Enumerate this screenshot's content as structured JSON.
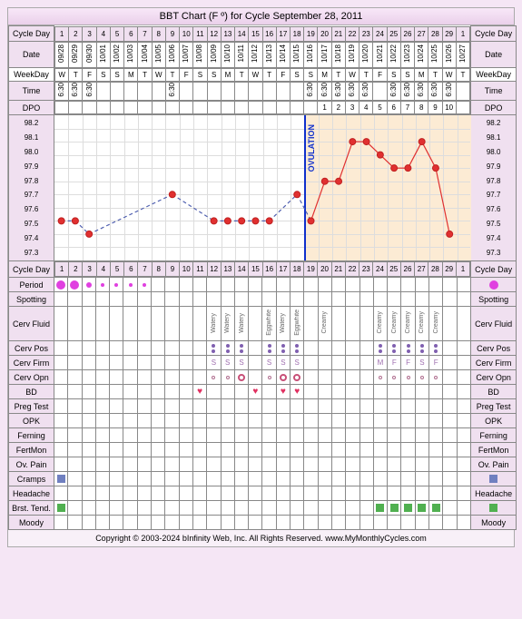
{
  "title": "BBT Chart (F º) for Cycle September 28, 2011",
  "footer": "Copyright © 2003-2024 bInfinity Web, Inc. All Rights Reserved.    www.MyMonthlyCycles.com",
  "labels": {
    "cycleDay": "Cycle Day",
    "date": "Date",
    "weekday": "WeekDay",
    "time": "Time",
    "dpo": "DPO",
    "period": "Period",
    "spotting": "Spotting",
    "cervFluid": "Cerv Fluid",
    "cervPos": "Cerv Pos",
    "cervFirm": "Cerv Firm",
    "cervOpn": "Cerv Opn",
    "bd": "BD",
    "pregTest": "Preg Test",
    "opk": "OPK",
    "ferning": "Ferning",
    "fertMon": "FertMon",
    "ovPain": "Ov. Pain",
    "cramps": "Cramps",
    "headache": "Headache",
    "brstTend": "Brst. Tend.",
    "moody": "Moody",
    "ovulation": "OVULATION"
  },
  "days": [
    1,
    2,
    3,
    4,
    5,
    6,
    7,
    8,
    9,
    10,
    11,
    12,
    13,
    14,
    15,
    16,
    17,
    18,
    19,
    20,
    21,
    22,
    23,
    24,
    25,
    26,
    27,
    28,
    29,
    1
  ],
  "dates": [
    "09/28",
    "09/29",
    "09/30",
    "10/01",
    "10/02",
    "10/03",
    "10/04",
    "10/05",
    "10/06",
    "10/07",
    "10/08",
    "10/09",
    "10/10",
    "10/11",
    "10/12",
    "10/13",
    "10/14",
    "10/15",
    "10/16",
    "10/17",
    "10/18",
    "10/19",
    "10/20",
    "10/21",
    "10/22",
    "10/23",
    "10/24",
    "10/25",
    "10/26",
    "10/27"
  ],
  "weekdays": [
    "W",
    "T",
    "F",
    "S",
    "S",
    "M",
    "T",
    "W",
    "T",
    "F",
    "S",
    "S",
    "M",
    "T",
    "W",
    "T",
    "F",
    "S",
    "S",
    "M",
    "T",
    "W",
    "T",
    "F",
    "S",
    "S",
    "M",
    "T",
    "W",
    "T"
  ],
  "times": [
    "6:30",
    "6:30",
    "6:30",
    "",
    "",
    "",
    "",
    "",
    "6:30",
    "",
    "",
    "",
    "",
    "",
    "",
    "",
    "",
    "",
    "6:30",
    "6:30",
    "6:30",
    "6:30",
    "6:30",
    "",
    "6:30",
    "6:30",
    "6:30",
    "6:30",
    "6:30",
    ""
  ],
  "dpo": [
    "",
    "",
    "",
    "",
    "",
    "",
    "",
    "",
    "",
    "",
    "",
    "",
    "",
    "",
    "",
    "",
    "",
    "",
    "",
    "1",
    "2",
    "3",
    "4",
    "5",
    "6",
    "7",
    "8",
    "9",
    "10",
    ""
  ],
  "yTicks": [
    "98.2",
    "98.1",
    "98.0",
    "97.9",
    "97.8",
    "97.7",
    "97.6",
    "97.5",
    "97.4",
    "97.3"
  ],
  "chart": {
    "ymin": 97.2,
    "ymax": 98.3,
    "ovulationDay": 19,
    "lutealStart": 19,
    "points": [
      {
        "d": 1,
        "t": 97.5
      },
      {
        "d": 2,
        "t": 97.5
      },
      {
        "d": 3,
        "t": 97.4
      },
      {
        "d": 9,
        "t": 97.7
      },
      {
        "d": 12,
        "t": 97.5
      },
      {
        "d": 13,
        "t": 97.5
      },
      {
        "d": 14,
        "t": 97.5
      },
      {
        "d": 15,
        "t": 97.5
      },
      {
        "d": 16,
        "t": 97.5
      },
      {
        "d": 18,
        "t": 97.7
      },
      {
        "d": 19,
        "t": 97.5
      },
      {
        "d": 20,
        "t": 97.8
      },
      {
        "d": 21,
        "t": 97.8
      },
      {
        "d": 22,
        "t": 98.1
      },
      {
        "d": 23,
        "t": 98.1
      },
      {
        "d": 24,
        "t": 98.0
      },
      {
        "d": 25,
        "t": 97.9
      },
      {
        "d": 26,
        "t": 97.9
      },
      {
        "d": 27,
        "t": 98.1
      },
      {
        "d": 28,
        "t": 97.9
      },
      {
        "d": 29,
        "t": 97.4
      }
    ],
    "dashedSegments": [
      [
        1,
        2
      ],
      [
        2,
        3
      ],
      [
        3,
        9
      ],
      [
        9,
        12
      ],
      [
        12,
        13
      ],
      [
        13,
        14
      ],
      [
        14,
        15
      ],
      [
        15,
        16
      ],
      [
        16,
        18
      ],
      [
        18,
        19
      ]
    ],
    "solidSegments": [
      [
        19,
        20
      ],
      [
        20,
        21
      ],
      [
        21,
        22
      ],
      [
        22,
        23
      ],
      [
        23,
        24
      ],
      [
        24,
        25
      ],
      [
        25,
        26
      ],
      [
        26,
        27
      ],
      [
        27,
        28
      ],
      [
        28,
        29
      ]
    ],
    "bg_color": "#ffffff",
    "luteal_bg": "#fcebd4",
    "point_color": "#e03030",
    "dash_color": "#5060b0",
    "solid_color": "#e03030",
    "ov_line_color": "#1030cc"
  },
  "period": {
    "heavy": [
      1,
      2
    ],
    "medium": [
      3
    ],
    "light": [
      4,
      5,
      6,
      7
    ],
    "cycleEnd": true
  },
  "cervFluid": {
    "12": "Watery",
    "13": "Watery",
    "14": "Watery",
    "16": "Eggwhite",
    "17": "Watery",
    "18": "Eggwhite",
    "20": "Creamy",
    "24": "Creamy",
    "25": "Creamy",
    "26": "Creamy",
    "27": "Creamy",
    "28": "Creamy"
  },
  "cervPos": {
    "12": 2,
    "13": 2,
    "14": 2,
    "16": 2,
    "17": 2,
    "18": 2,
    "24": 2,
    "25": 2,
    "26": 2,
    "27": 2,
    "28": 2
  },
  "cervFirm": {
    "12": "S",
    "13": "S",
    "14": "S",
    "16": "S",
    "17": "S",
    "18": "S",
    "24": "M",
    "25": "F",
    "26": "F",
    "27": "S",
    "28": "F"
  },
  "cervOpn": {
    "12": "r",
    "13": "r",
    "14": "R",
    "16": "r",
    "17": "R",
    "18": "R",
    "24": "r",
    "25": "r",
    "26": "r",
    "27": "r",
    "28": "r"
  },
  "bd": [
    11,
    15,
    17,
    18
  ],
  "cramps": [
    1
  ],
  "brstTend": [
    1,
    24,
    25,
    26,
    27,
    28
  ]
}
